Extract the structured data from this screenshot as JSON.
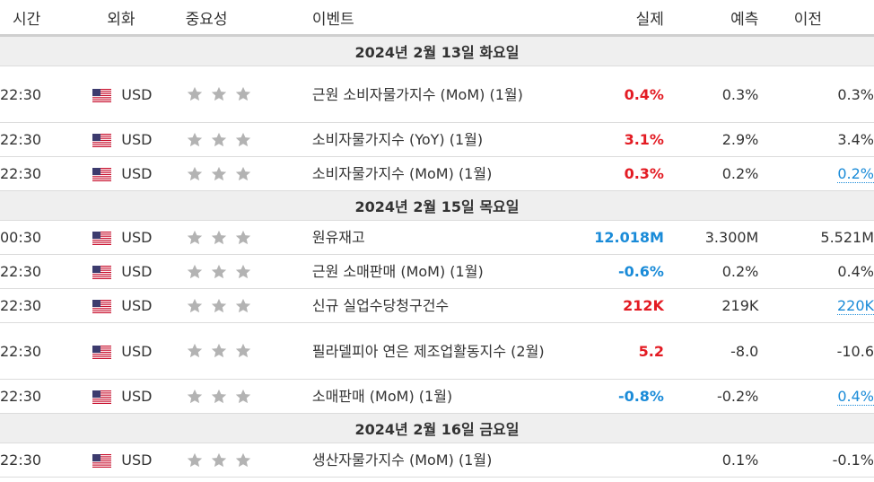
{
  "header": {
    "time": "시간",
    "currency": "외화",
    "importance": "중요성",
    "event": "이벤트",
    "actual": "실제",
    "forecast": "예측",
    "previous": "이전"
  },
  "colors": {
    "positive": "#e31b23",
    "negative": "#1a8bd8",
    "revised": "#1a8bd8",
    "star": "#b3b3b3"
  },
  "groups": [
    {
      "date": "2024년 2월 13일 화요일",
      "events": [
        {
          "time": "22:30",
          "currency": "USD",
          "flag": "us-flag-icon",
          "stars": 3,
          "event": "근원 소비자물가지수 (MoM) (1월)",
          "actual": "0.4%",
          "actual_color": "red",
          "forecast": "0.3%",
          "previous": "0.3%",
          "previous_revised": false,
          "tall": true
        },
        {
          "time": "22:30",
          "currency": "USD",
          "flag": "us-flag-icon",
          "stars": 3,
          "event": "소비자물가지수 (YoY) (1월)",
          "actual": "3.1%",
          "actual_color": "red",
          "forecast": "2.9%",
          "previous": "3.4%",
          "previous_revised": false,
          "tall": false
        },
        {
          "time": "22:30",
          "currency": "USD",
          "flag": "us-flag-icon",
          "stars": 3,
          "event": "소비자물가지수 (MoM) (1월)",
          "actual": "0.3%",
          "actual_color": "red",
          "forecast": "0.2%",
          "previous": "0.2%",
          "previous_revised": true,
          "tall": false
        }
      ]
    },
    {
      "date": "2024년 2월 15일 목요일",
      "events": [
        {
          "time": "00:30",
          "currency": "USD",
          "flag": "us-flag-icon",
          "stars": 3,
          "event": "원유재고",
          "actual": "12.018M",
          "actual_color": "blue",
          "forecast": "3.300M",
          "previous": "5.521M",
          "previous_revised": false,
          "tall": false
        },
        {
          "time": "22:30",
          "currency": "USD",
          "flag": "us-flag-icon",
          "stars": 3,
          "event": "근원 소매판매 (MoM) (1월)",
          "actual": "-0.6%",
          "actual_color": "blue",
          "forecast": "0.2%",
          "previous": "0.4%",
          "previous_revised": false,
          "tall": false
        },
        {
          "time": "22:30",
          "currency": "USD",
          "flag": "us-flag-icon",
          "stars": 3,
          "event": "신규 실업수당청구건수",
          "actual": "212K",
          "actual_color": "red",
          "forecast": "219K",
          "previous": "220K",
          "previous_revised": true,
          "tall": false
        },
        {
          "time": "22:30",
          "currency": "USD",
          "flag": "us-flag-icon",
          "stars": 3,
          "event": "필라델피아 연은 제조업활동지수 (2월)",
          "actual": "5.2",
          "actual_color": "red",
          "forecast": "-8.0",
          "previous": "-10.6",
          "previous_revised": false,
          "tall": true
        },
        {
          "time": "22:30",
          "currency": "USD",
          "flag": "us-flag-icon",
          "stars": 3,
          "event": "소매판매 (MoM) (1월)",
          "actual": "-0.8%",
          "actual_color": "blue",
          "forecast": "-0.2%",
          "previous": "0.4%",
          "previous_revised": true,
          "tall": false
        }
      ]
    },
    {
      "date": "2024년 2월 16일 금요일",
      "events": [
        {
          "time": "22:30",
          "currency": "USD",
          "flag": "us-flag-icon",
          "stars": 3,
          "event": "생산자물가지수 (MoM) (1월)",
          "actual": "",
          "actual_color": "",
          "forecast": "0.1%",
          "previous": "-0.1%",
          "previous_revised": false,
          "tall": false
        }
      ]
    }
  ]
}
